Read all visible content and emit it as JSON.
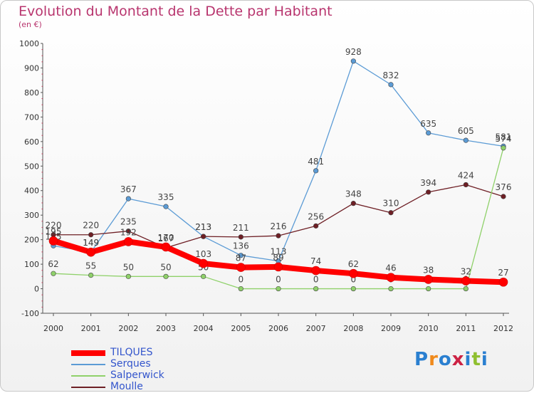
{
  "chart_data": {
    "type": "line",
    "title": "Evolution du Montant de la Dette par Habitant",
    "subtitle": "(en €)",
    "x": [
      "2000",
      "2001",
      "2002",
      "2003",
      "2004",
      "2005",
      "2006",
      "2007",
      "2008",
      "2009",
      "2010",
      "2011",
      "2012"
    ],
    "ylim": [
      -100,
      1000
    ],
    "yticks": [
      "-100",
      "0",
      "100",
      "200",
      "300",
      "400",
      "500",
      "600",
      "700",
      "800",
      "900",
      "1000"
    ],
    "grid": false,
    "legend_position": "bottom-left",
    "series": [
      {
        "name": "Serques",
        "color": "#5b9bd5",
        "values": [
          175,
          149,
          367,
          335,
          213,
          136,
          113,
          481,
          928,
          832,
          635,
          605,
          581
        ],
        "labels": [
          "175",
          "149",
          "367",
          "335",
          "213",
          "136",
          "113",
          "481",
          "928",
          "832",
          "635",
          "605",
          "581"
        ]
      },
      {
        "name": "Moulle",
        "color": "#6e1f25",
        "values": [
          220,
          220,
          235,
          167,
          213,
          211,
          216,
          256,
          348,
          310,
          394,
          424,
          376
        ],
        "labels": [
          "220",
          "220",
          "235",
          "167",
          "213",
          "211",
          "216",
          "256",
          "348",
          "310",
          "394",
          "424",
          "376"
        ]
      },
      {
        "name": "Salperwick",
        "color": "#8fd16a",
        "values": [
          62,
          55,
          50,
          50,
          50,
          0,
          0,
          0,
          0,
          0,
          0,
          0,
          574
        ],
        "labels": [
          "62",
          "55",
          "50",
          "50",
          "50",
          "0",
          "0",
          "0",
          "0",
          "0",
          "0",
          "0",
          "574"
        ]
      },
      {
        "name": "TILQUES",
        "color": "#ff0000",
        "values": [
          195,
          149,
          192,
          170,
          103,
          87,
          89,
          74,
          62,
          46,
          38,
          32,
          27
        ],
        "labels": [
          "195",
          "149",
          "192",
          "170",
          "103",
          "87",
          "89",
          "74",
          "62",
          "46",
          "38",
          "32",
          "27"
        ]
      }
    ],
    "legend_order": [
      "TILQUES",
      "Serques",
      "Salperwick",
      "Moulle"
    ]
  },
  "logo": {
    "letters": [
      "P",
      "r",
      "o",
      "x",
      "i",
      "t",
      "i"
    ],
    "colors": [
      "#2a7fd0",
      "#f08a1c",
      "#2a7fd0",
      "#cc2244",
      "#2a7fd0",
      "#8fbf2f",
      "#2a7fd0"
    ]
  }
}
